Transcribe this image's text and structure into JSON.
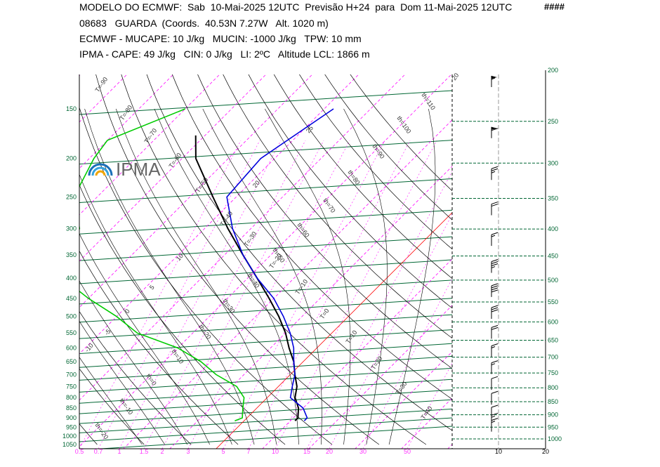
{
  "header": {
    "line1": "MODELO DO ECMWF:  Sab  10-Mai-2025 12UTC  Previsão H+24  para  Dom 11-Mai-2025 12UTC",
    "flag": "####",
    "line2": "08683   GUARDA  (Coords.  40.53N 7.27W   Alt. 1020 m)",
    "line3": "ECMWF - MUCAPE: 10 J/kg   MUCIN: -1000 J/kg   TPW: 10 mm",
    "line4": "IPMA - CAPE: 49 J/kg   CIN: 0 J/kg   LI: 2ºC   Altitude LCL: 1866 m"
  },
  "logo": {
    "text": "IPMA"
  },
  "colors": {
    "isobar": "#006633",
    "isotherm": "#ff00ff",
    "dry_adiabat": "#000000",
    "moist_adiabat": "#000000",
    "mixing_ratio": "#ff33ff",
    "temperature": "#0000dd",
    "dewpoint": "#00cc00",
    "parcel": "#000000",
    "zero_isotherm": "#ff0000"
  },
  "chart_data": {
    "type": "line",
    "subtype": "skew-t log-p sounding",
    "pressure_levels_left": [
      "150",
      "200",
      "250",
      "300",
      "350",
      "400",
      "450",
      "500",
      "550",
      "600",
      "650",
      "700",
      "750",
      "800",
      "850",
      "900",
      "950",
      "1000",
      "1050"
    ],
    "pressure_levels_right": [
      "200",
      "250",
      "300",
      "350",
      "400",
      "450",
      "500",
      "550",
      "600",
      "650",
      "700",
      "750",
      "800",
      "850",
      "900",
      "950",
      "1000"
    ],
    "mixing_ratio_ticks": [
      "0.5",
      "0.7",
      "1",
      "1.5",
      "2",
      "3",
      "5",
      "7",
      "10",
      "15",
      "20",
      "30",
      "50"
    ],
    "wind_axis_ticks": [
      "10",
      "20"
    ],
    "isotherm_labels": [
      "T=-90",
      "T=-80",
      "T=-70",
      "T=-60",
      "T=-50",
      "T=-40",
      "T=-30",
      "T=-20",
      "T=-10",
      "T=0",
      "T=10",
      "T=20",
      "T=30",
      "T=40"
    ],
    "dry_adiabat_labels": [
      "th=110",
      "th=100",
      "th=90",
      "th=80",
      "th=70",
      "th=60",
      "th=50",
      "th=40",
      "th=30",
      "th=20",
      "th=10",
      "th=0",
      "th=-10",
      "th=-20"
    ],
    "moist_adiabat_labels": [
      "25",
      "20",
      "10",
      "5",
      "0",
      "-5",
      "-10"
    ],
    "series": [
      {
        "name": "temperature",
        "points": [
          [
            150,
            -48
          ],
          [
            200,
            -53
          ],
          [
            250,
            -52
          ],
          [
            300,
            -44
          ],
          [
            350,
            -36
          ],
          [
            400,
            -28
          ],
          [
            450,
            -20
          ],
          [
            500,
            -14
          ],
          [
            550,
            -9
          ],
          [
            600,
            -5
          ],
          [
            650,
            -2
          ],
          [
            700,
            1
          ],
          [
            750,
            3
          ],
          [
            800,
            5
          ],
          [
            850,
            10
          ],
          [
            900,
            13
          ],
          [
            915,
            13
          ]
        ]
      },
      {
        "name": "dewpoint",
        "points": [
          [
            150,
            -80
          ],
          [
            180,
            -90
          ],
          [
            200,
            -89
          ],
          [
            250,
            -85
          ],
          [
            300,
            -77
          ],
          [
            350,
            -73
          ],
          [
            400,
            -70
          ],
          [
            450,
            -60
          ],
          [
            500,
            -50
          ],
          [
            550,
            -42
          ],
          [
            600,
            -30
          ],
          [
            650,
            -22
          ],
          [
            700,
            -16
          ],
          [
            750,
            -9
          ],
          [
            800,
            -5
          ],
          [
            850,
            -3
          ],
          [
            900,
            -1
          ],
          [
            915,
            -2
          ]
        ]
      },
      {
        "name": "parcel",
        "points": [
          [
            175,
            -72
          ],
          [
            200,
            -67
          ],
          [
            250,
            -55
          ],
          [
            300,
            -45
          ],
          [
            350,
            -36
          ],
          [
            400,
            -28
          ],
          [
            450,
            -21
          ],
          [
            500,
            -15
          ],
          [
            550,
            -10
          ],
          [
            600,
            -6
          ],
          [
            650,
            -2
          ],
          [
            700,
            1
          ],
          [
            750,
            4
          ],
          [
            800,
            6
          ],
          [
            850,
            9
          ],
          [
            900,
            11
          ],
          [
            915,
            11
          ]
        ]
      }
    ],
    "winds": [
      {
        "p": 200,
        "speed": 55
      },
      {
        "p": 250,
        "speed": 60
      },
      {
        "p": 300,
        "speed": 25
      },
      {
        "p": 350,
        "speed": 20
      },
      {
        "p": 400,
        "speed": 15
      },
      {
        "p": 450,
        "speed": 35
      },
      {
        "p": 500,
        "speed": 40
      },
      {
        "p": 550,
        "speed": 30
      },
      {
        "p": 600,
        "speed": 20
      },
      {
        "p": 650,
        "speed": 15
      },
      {
        "p": 700,
        "speed": 15
      },
      {
        "p": 750,
        "speed": 10
      },
      {
        "p": 800,
        "speed": 10
      },
      {
        "p": 850,
        "speed": 10
      },
      {
        "p": 880,
        "speed": 15
      },
      {
        "p": 900,
        "speed": 15
      }
    ]
  }
}
